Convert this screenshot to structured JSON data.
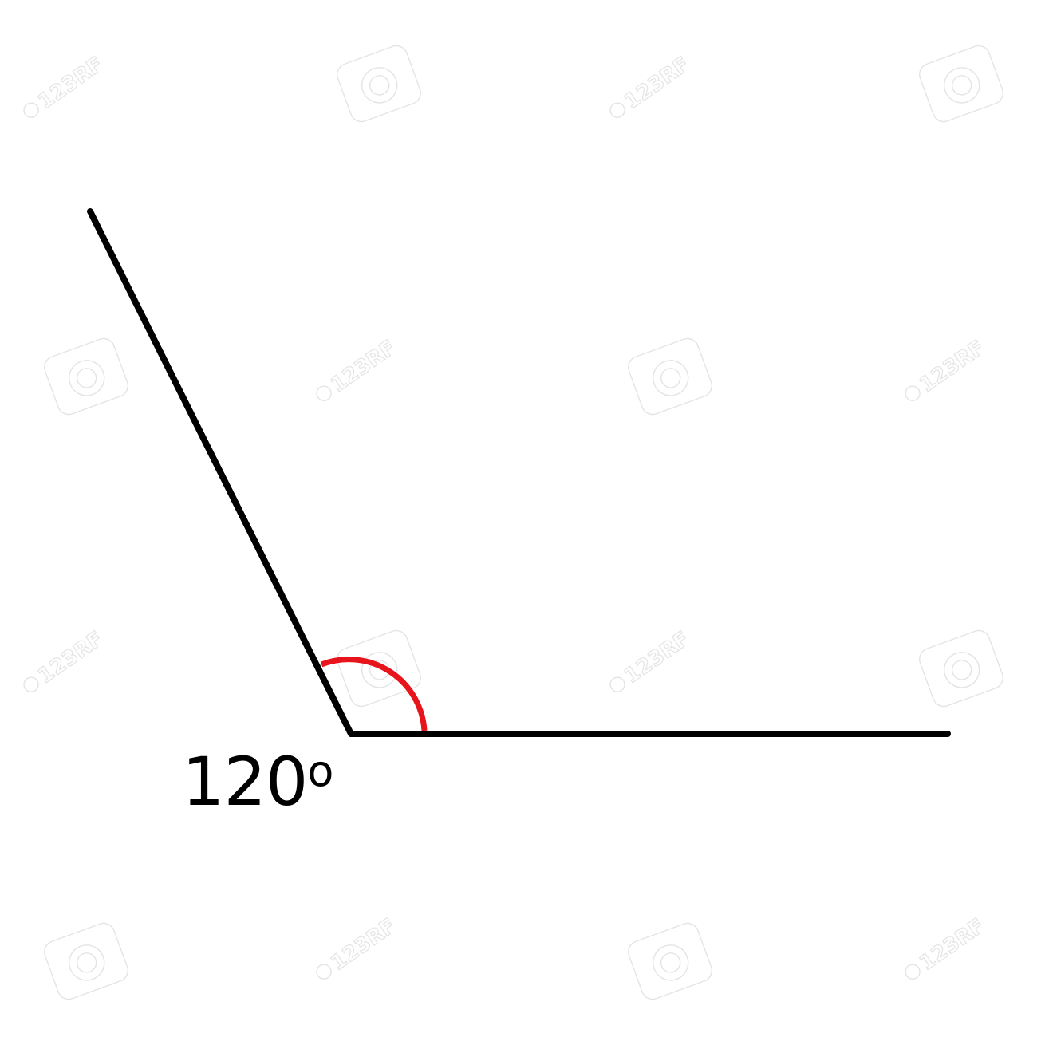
{
  "diagram": {
    "angle_degrees": 120,
    "angle_label": {
      "value": "120",
      "unit": "o"
    },
    "colors": {
      "background": "#ffffff",
      "rays": "#000000",
      "arc": "#e8141c",
      "watermark": "#e4e4e4"
    }
  },
  "watermark": {
    "text": "123RF",
    "icon": "camera-icon"
  }
}
